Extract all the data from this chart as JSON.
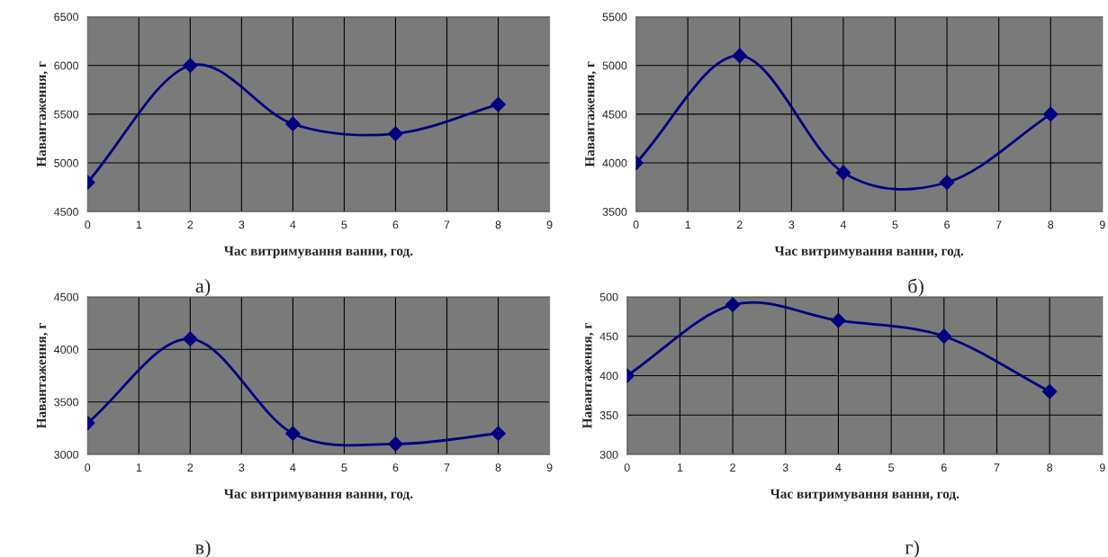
{
  "chart_data": [
    {
      "type": "line",
      "xlabel": "Час витримування ванни, год.",
      "ylabel": "Навантаження, г",
      "x": [
        0,
        2,
        4,
        6,
        8
      ],
      "series": [
        {
          "color": "#000080",
          "values": [
            4800,
            6000,
            5400,
            5300,
            5600
          ]
        }
      ],
      "xlim": [
        0,
        9
      ],
      "xticks": [
        0,
        1,
        2,
        3,
        4,
        5,
        6,
        7,
        8,
        9
      ],
      "ylim": [
        4500,
        6500
      ],
      "yticks": [
        4500,
        5000,
        5500,
        6000,
        6500
      ],
      "grid": true,
      "marker": "diamond",
      "line_style": "solid",
      "annotations": [
        "а)"
      ]
    },
    {
      "type": "line",
      "xlabel": "Час витримування ванни, год.",
      "ylabel": "Навантаження, г",
      "x": [
        0,
        2,
        4,
        6,
        8
      ],
      "series": [
        {
          "color": "#000080",
          "values": [
            4000,
            5100,
            3900,
            3800,
            4500
          ]
        }
      ],
      "xlim": [
        0,
        9
      ],
      "xticks": [
        0,
        1,
        2,
        3,
        4,
        5,
        6,
        7,
        8,
        9
      ],
      "ylim": [
        3500,
        5500
      ],
      "yticks": [
        3500,
        4000,
        4500,
        5000,
        5500
      ],
      "grid": true,
      "marker": "diamond",
      "line_style": "solid",
      "annotations": [
        "б)"
      ]
    },
    {
      "type": "line",
      "xlabel": "Час витримування ванни, год.",
      "ylabel": "Навантаження, г",
      "x": [
        0,
        2,
        4,
        6,
        8
      ],
      "series": [
        {
          "color": "#000080",
          "values": [
            3300,
            4100,
            3200,
            3100,
            3200
          ]
        }
      ],
      "xlim": [
        0,
        9
      ],
      "xticks": [
        0,
        1,
        2,
        3,
        4,
        5,
        6,
        7,
        8,
        9
      ],
      "ylim": [
        3000,
        4500
      ],
      "yticks": [
        3000,
        3500,
        4000,
        4500
      ],
      "grid": true,
      "marker": "diamond",
      "line_style": "solid",
      "annotations": [
        "в)"
      ]
    },
    {
      "type": "line",
      "xlabel": "Час витримування ванни, год.",
      "ylabel": "Навантаження, г",
      "x": [
        0,
        2,
        4,
        6,
        8
      ],
      "series": [
        {
          "color": "#000080",
          "values": [
            400,
            490,
            470,
            450,
            380
          ]
        }
      ],
      "xlim": [
        0,
        9
      ],
      "xticks": [
        0,
        1,
        2,
        3,
        4,
        5,
        6,
        7,
        8,
        9
      ],
      "ylim": [
        300,
        500
      ],
      "yticks": [
        300,
        350,
        400,
        450,
        500
      ],
      "grid": true,
      "marker": "diamond",
      "line_style": "solid",
      "annotations": [
        "г)"
      ]
    }
  ]
}
